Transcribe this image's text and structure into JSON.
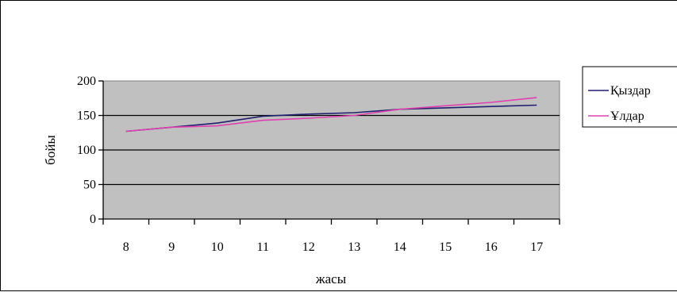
{
  "chart_data": {
    "type": "line",
    "title": "",
    "xlabel": "жасы",
    "ylabel": "бойы",
    "x": [
      "8",
      "9",
      "10",
      "11",
      "12",
      "13",
      "14",
      "15",
      "16",
      "17"
    ],
    "ylim": [
      0,
      200
    ],
    "yticks": [
      "0",
      "50",
      "100",
      "150",
      "200"
    ],
    "grid": "horizontal",
    "plot_background": "#c0c0c0",
    "legend_position": "right",
    "series": [
      {
        "name": "Қыздар",
        "color": "#1f1f6e",
        "values": [
          127,
          133,
          139,
          149,
          152,
          154,
          159,
          161,
          163,
          165
        ]
      },
      {
        "name": "Ұлдар",
        "color": "#e040b0",
        "values": [
          127,
          133,
          135,
          143,
          146,
          150,
          159,
          164,
          169,
          176
        ]
      }
    ]
  }
}
